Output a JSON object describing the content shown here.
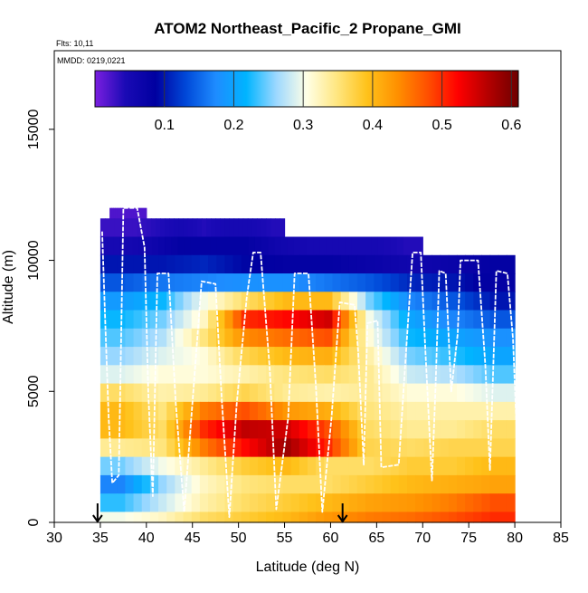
{
  "chart_data": {
    "type": "heatmap",
    "title": "ATOM2 Northeast_Pacific_2 Propane_GMI",
    "flights_label": "Flts: 10,11",
    "dates_label": "MMDD: 0219,0221",
    "xlabel": "Latitude (deg N)",
    "ylabel": "Altitude (m)",
    "xlim": [
      30,
      85
    ],
    "ylim": [
      0,
      18000
    ],
    "x_ticks": [
      "30",
      "35",
      "40",
      "45",
      "50",
      "55",
      "60",
      "65",
      "70",
      "75",
      "80",
      "85"
    ],
    "y_ticks": [
      "0",
      "5000",
      "10000",
      "15000"
    ],
    "colorbar": {
      "range": [
        0.0,
        0.61
      ],
      "ticks": [
        "0.1",
        "0.2",
        "0.3",
        "0.4",
        "0.5",
        "0.6"
      ],
      "colors": [
        "#7b1fe0",
        "#1a0ab5",
        "#0000a0",
        "#0048d8",
        "#1e8cff",
        "#00b4ff",
        "#9dd8ff",
        "#ffffe6",
        "#ffe680",
        "#ffc21a",
        "#ff9000",
        "#ff5000",
        "#ff0000",
        "#b40000",
        "#6e0000"
      ]
    },
    "curtain_rows": [
      {
        "alt_range": [
          11600,
          12000
        ],
        "lat_range": [
          36,
          40
        ],
        "values": [
          0.02,
          0.02,
          0.02,
          0.02
        ]
      },
      {
        "alt_range": [
          10900,
          11600
        ],
        "lat_range": [
          35,
          55
        ],
        "values": [
          0.03,
          0.03,
          0.04,
          0.05,
          0.04,
          0.05,
          0.05,
          0.04
        ]
      },
      {
        "alt_range": [
          10200,
          10900
        ],
        "lat_range": [
          35,
          70
        ],
        "values": [
          0.05,
          0.06,
          0.08,
          0.08,
          0.08,
          0.06,
          0.05,
          0.05,
          0.05,
          0.04
        ]
      },
      {
        "alt_range": [
          9500,
          10200
        ],
        "lat_range": [
          35,
          80
        ],
        "values": [
          0.1,
          0.1,
          0.11,
          0.09,
          0.08,
          0.08,
          0.07,
          0.06,
          0.07,
          0.08
        ]
      },
      {
        "alt_range": [
          8800,
          9500
        ],
        "lat_range": [
          35,
          80
        ],
        "values": [
          0.14,
          0.16,
          0.17,
          0.18,
          0.18,
          0.16,
          0.14,
          0.11,
          0.1,
          0.08
        ]
      },
      {
        "alt_range": [
          8100,
          8800
        ],
        "lat_range": [
          35,
          80
        ],
        "values": [
          0.19,
          0.22,
          0.3,
          0.36,
          0.4,
          0.4,
          0.25,
          0.17,
          0.14,
          0.1
        ]
      },
      {
        "alt_range": [
          7400,
          8100
        ],
        "lat_range": [
          35,
          80
        ],
        "values": [
          0.22,
          0.25,
          0.32,
          0.5,
          0.52,
          0.55,
          0.3,
          0.2,
          0.17,
          0.14
        ]
      },
      {
        "alt_range": [
          6700,
          7400
        ],
        "lat_range": [
          35,
          80
        ],
        "values": [
          0.24,
          0.27,
          0.35,
          0.44,
          0.46,
          0.48,
          0.31,
          0.22,
          0.2,
          0.18
        ]
      },
      {
        "alt_range": [
          6000,
          6700
        ],
        "lat_range": [
          35,
          80
        ],
        "values": [
          0.26,
          0.29,
          0.31,
          0.37,
          0.4,
          0.41,
          0.33,
          0.25,
          0.23,
          0.2
        ]
      },
      {
        "alt_range": [
          5300,
          6000
        ],
        "lat_range": [
          35,
          80
        ],
        "values": [
          0.29,
          0.31,
          0.31,
          0.33,
          0.35,
          0.36,
          0.34,
          0.28,
          0.27,
          0.24
        ]
      },
      {
        "alt_range": [
          4600,
          5300
        ],
        "lat_range": [
          35,
          80
        ],
        "values": [
          0.36,
          0.33,
          0.34,
          0.37,
          0.34,
          0.33,
          0.34,
          0.31,
          0.31,
          0.29
        ]
      },
      {
        "alt_range": [
          3900,
          4600
        ],
        "lat_range": [
          35,
          80
        ],
        "values": [
          0.4,
          0.35,
          0.45,
          0.48,
          0.43,
          0.41,
          0.35,
          0.33,
          0.33,
          0.33
        ]
      },
      {
        "alt_range": [
          3200,
          3900
        ],
        "lat_range": [
          35,
          80
        ],
        "values": [
          0.4,
          0.36,
          0.5,
          0.56,
          0.55,
          0.48,
          0.36,
          0.34,
          0.34,
          0.36
        ]
      },
      {
        "alt_range": [
          2500,
          3200
        ],
        "lat_range": [
          35,
          80
        ],
        "values": [
          0.34,
          0.35,
          0.45,
          0.52,
          0.58,
          0.5,
          0.37,
          0.36,
          0.37,
          0.37
        ]
      },
      {
        "alt_range": [
          1800,
          2500
        ],
        "lat_range": [
          35,
          80
        ],
        "values": [
          0.25,
          0.3,
          0.34,
          0.38,
          0.4,
          0.36,
          0.36,
          0.38,
          0.38,
          0.4
        ]
      },
      {
        "alt_range": [
          1100,
          1800
        ],
        "lat_range": [
          35,
          80
        ],
        "values": [
          0.17,
          0.26,
          0.32,
          0.35,
          0.36,
          0.36,
          0.38,
          0.4,
          0.41,
          0.42
        ]
      },
      {
        "alt_range": [
          400,
          1100
        ],
        "lat_range": [
          35,
          80
        ],
        "values": [
          0.23,
          0.28,
          0.33,
          0.36,
          0.38,
          0.4,
          0.42,
          0.43,
          0.45,
          0.48
        ]
      },
      {
        "alt_range": [
          0,
          400
        ],
        "lat_range": [
          35,
          80
        ],
        "values": [
          0.3,
          0.32,
          0.36,
          0.38,
          0.4,
          0.43,
          0.45,
          0.46,
          0.48,
          0.5
        ]
      }
    ],
    "flight_track": [
      [
        35.2,
        11100
      ],
      [
        35.6,
        7000
      ],
      [
        35.9,
        4000
      ],
      [
        36.3,
        1500
      ],
      [
        37.0,
        1800
      ],
      [
        37.5,
        12000
      ],
      [
        39.0,
        12000
      ],
      [
        39.8,
        10500
      ],
      [
        40.2,
        5000
      ],
      [
        40.7,
        1000
      ],
      [
        41.2,
        9500
      ],
      [
        42.4,
        9500
      ],
      [
        43.2,
        4500
      ],
      [
        44.1,
        400
      ],
      [
        45.1,
        5000
      ],
      [
        46.0,
        9200
      ],
      [
        47.5,
        9100
      ],
      [
        48.2,
        4600
      ],
      [
        49.0,
        200
      ],
      [
        49.8,
        4500
      ],
      [
        50.9,
        8600
      ],
      [
        51.6,
        10300
      ],
      [
        52.4,
        10300
      ],
      [
        53.4,
        5800
      ],
      [
        54.1,
        500
      ],
      [
        55.4,
        4000
      ],
      [
        56.1,
        9500
      ],
      [
        57.6,
        9500
      ],
      [
        58.4,
        5200
      ],
      [
        59.1,
        400
      ],
      [
        60.1,
        4000
      ],
      [
        61.0,
        8400
      ],
      [
        62.6,
        8300
      ],
      [
        63.0,
        6500
      ],
      [
        63.6,
        2200
      ],
      [
        64.0,
        7600
      ],
      [
        65.1,
        7700
      ],
      [
        65.5,
        2100
      ],
      [
        67.4,
        2200
      ],
      [
        68.1,
        6000
      ],
      [
        68.9,
        10300
      ],
      [
        69.8,
        10300
      ],
      [
        70.3,
        6500
      ],
      [
        71.0,
        1600
      ],
      [
        71.4,
        5200
      ],
      [
        71.8,
        9600
      ],
      [
        72.5,
        9500
      ],
      [
        73.1,
        5000
      ],
      [
        73.8,
        7200
      ],
      [
        74.1,
        10000
      ],
      [
        76.0,
        10000
      ],
      [
        76.8,
        6000
      ],
      [
        77.3,
        2000
      ],
      [
        78.0,
        9600
      ],
      [
        79.2,
        9500
      ],
      [
        79.8,
        7000
      ],
      [
        80.2,
        3500
      ]
    ],
    "markers_lat": [
      34.7,
      61.3
    ]
  }
}
